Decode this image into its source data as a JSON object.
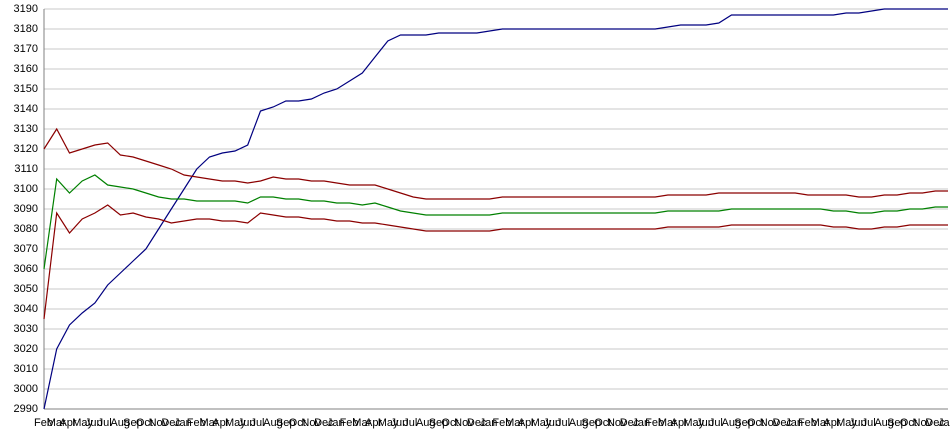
{
  "chart_data": {
    "type": "line",
    "categories": [
      "Feb",
      "Mar",
      "Apr",
      "May",
      "Jun",
      "Jul",
      "Aug",
      "Sep",
      "Oct",
      "Nov",
      "Dec",
      "Jan",
      "Feb",
      "Mar",
      "Apr",
      "May",
      "Jun",
      "Jul",
      "Aug",
      "Sep",
      "Oct",
      "Nov",
      "Dec",
      "Jan",
      "Feb",
      "Mar",
      "Apr",
      "May",
      "Jun",
      "Jul",
      "Aug",
      "Sep",
      "Oct",
      "Nov",
      "Dec",
      "Jan",
      "Feb",
      "Mar",
      "Apr",
      "May",
      "Jun",
      "Jul",
      "Aug",
      "Sep",
      "Oct",
      "Nov",
      "Dec",
      "Jan",
      "Feb",
      "Mar",
      "Apr",
      "May",
      "Jun",
      "Jul",
      "Aug",
      "Sep",
      "Oct",
      "Nov",
      "Dec",
      "Jan",
      "Feb",
      "Mar",
      "Apr",
      "May",
      "Jun",
      "Jul",
      "Aug",
      "Sep",
      "Oct",
      "Nov",
      "Dec",
      "Jan"
    ],
    "series": [
      {
        "color": "#000080",
        "values": [
          2990,
          3020,
          3032,
          3038,
          3043,
          3052,
          3058,
          3064,
          3070,
          3080,
          3090,
          3100,
          3110,
          3116,
          3118,
          3119,
          3122,
          3139,
          3141,
          3144,
          3144,
          3145,
          3148,
          3150,
          3154,
          3158,
          3166,
          3174,
          3177,
          3177,
          3177,
          3178,
          3178,
          3178,
          3178,
          3179,
          3180,
          3180,
          3180,
          3180,
          3180,
          3180,
          3180,
          3180,
          3180,
          3180,
          3180,
          3180,
          3180,
          3181,
          3182,
          3182,
          3182,
          3183,
          3187,
          3187,
          3187,
          3187,
          3187,
          3187,
          3187,
          3187,
          3187,
          3188,
          3188,
          3189,
          3190,
          3190,
          3190,
          3190,
          3190,
          3190
        ]
      },
      {
        "color": "#8b0000",
        "values": [
          3120,
          3130,
          3118,
          3120,
          3122,
          3123,
          3117,
          3116,
          3114,
          3112,
          3110,
          3107,
          3106,
          3105,
          3104,
          3104,
          3103,
          3104,
          3106,
          3105,
          3105,
          3104,
          3104,
          3103,
          3102,
          3102,
          3102,
          3100,
          3098,
          3096,
          3095,
          3095,
          3095,
          3095,
          3095,
          3095,
          3096,
          3096,
          3096,
          3096,
          3096,
          3096,
          3096,
          3096,
          3096,
          3096,
          3096,
          3096,
          3096,
          3097,
          3097,
          3097,
          3097,
          3098,
          3098,
          3098,
          3098,
          3098,
          3098,
          3098,
          3097,
          3097,
          3097,
          3097,
          3096,
          3096,
          3097,
          3097,
          3098,
          3098,
          3099,
          3099
        ]
      },
      {
        "color": "#008000",
        "values": [
          3060,
          3105,
          3098,
          3104,
          3107,
          3102,
          3101,
          3100,
          3098,
          3096,
          3095,
          3095,
          3094,
          3094,
          3094,
          3094,
          3093,
          3096,
          3096,
          3095,
          3095,
          3094,
          3094,
          3093,
          3093,
          3092,
          3093,
          3091,
          3089,
          3088,
          3087,
          3087,
          3087,
          3087,
          3087,
          3087,
          3088,
          3088,
          3088,
          3088,
          3088,
          3088,
          3088,
          3088,
          3088,
          3088,
          3088,
          3088,
          3088,
          3089,
          3089,
          3089,
          3089,
          3089,
          3090,
          3090,
          3090,
          3090,
          3090,
          3090,
          3090,
          3090,
          3089,
          3089,
          3088,
          3088,
          3089,
          3089,
          3090,
          3090,
          3091,
          3091
        ]
      },
      {
        "color": "#8b0000",
        "values": [
          3035,
          3088,
          3078,
          3085,
          3088,
          3092,
          3087,
          3088,
          3086,
          3085,
          3083,
          3084,
          3085,
          3085,
          3084,
          3084,
          3083,
          3088,
          3087,
          3086,
          3086,
          3085,
          3085,
          3084,
          3084,
          3083,
          3083,
          3082,
          3081,
          3080,
          3079,
          3079,
          3079,
          3079,
          3079,
          3079,
          3080,
          3080,
          3080,
          3080,
          3080,
          3080,
          3080,
          3080,
          3080,
          3080,
          3080,
          3080,
          3080,
          3081,
          3081,
          3081,
          3081,
          3081,
          3082,
          3082,
          3082,
          3082,
          3082,
          3082,
          3082,
          3082,
          3081,
          3081,
          3080,
          3080,
          3081,
          3081,
          3082,
          3082,
          3082,
          3082
        ]
      }
    ],
    "ylim": [
      2990,
      3190
    ],
    "yticks": [
      2990,
      3000,
      3010,
      3020,
      3030,
      3040,
      3050,
      3060,
      3070,
      3080,
      3090,
      3100,
      3110,
      3120,
      3130,
      3140,
      3150,
      3160,
      3170,
      3180,
      3190
    ],
    "grid": true
  }
}
